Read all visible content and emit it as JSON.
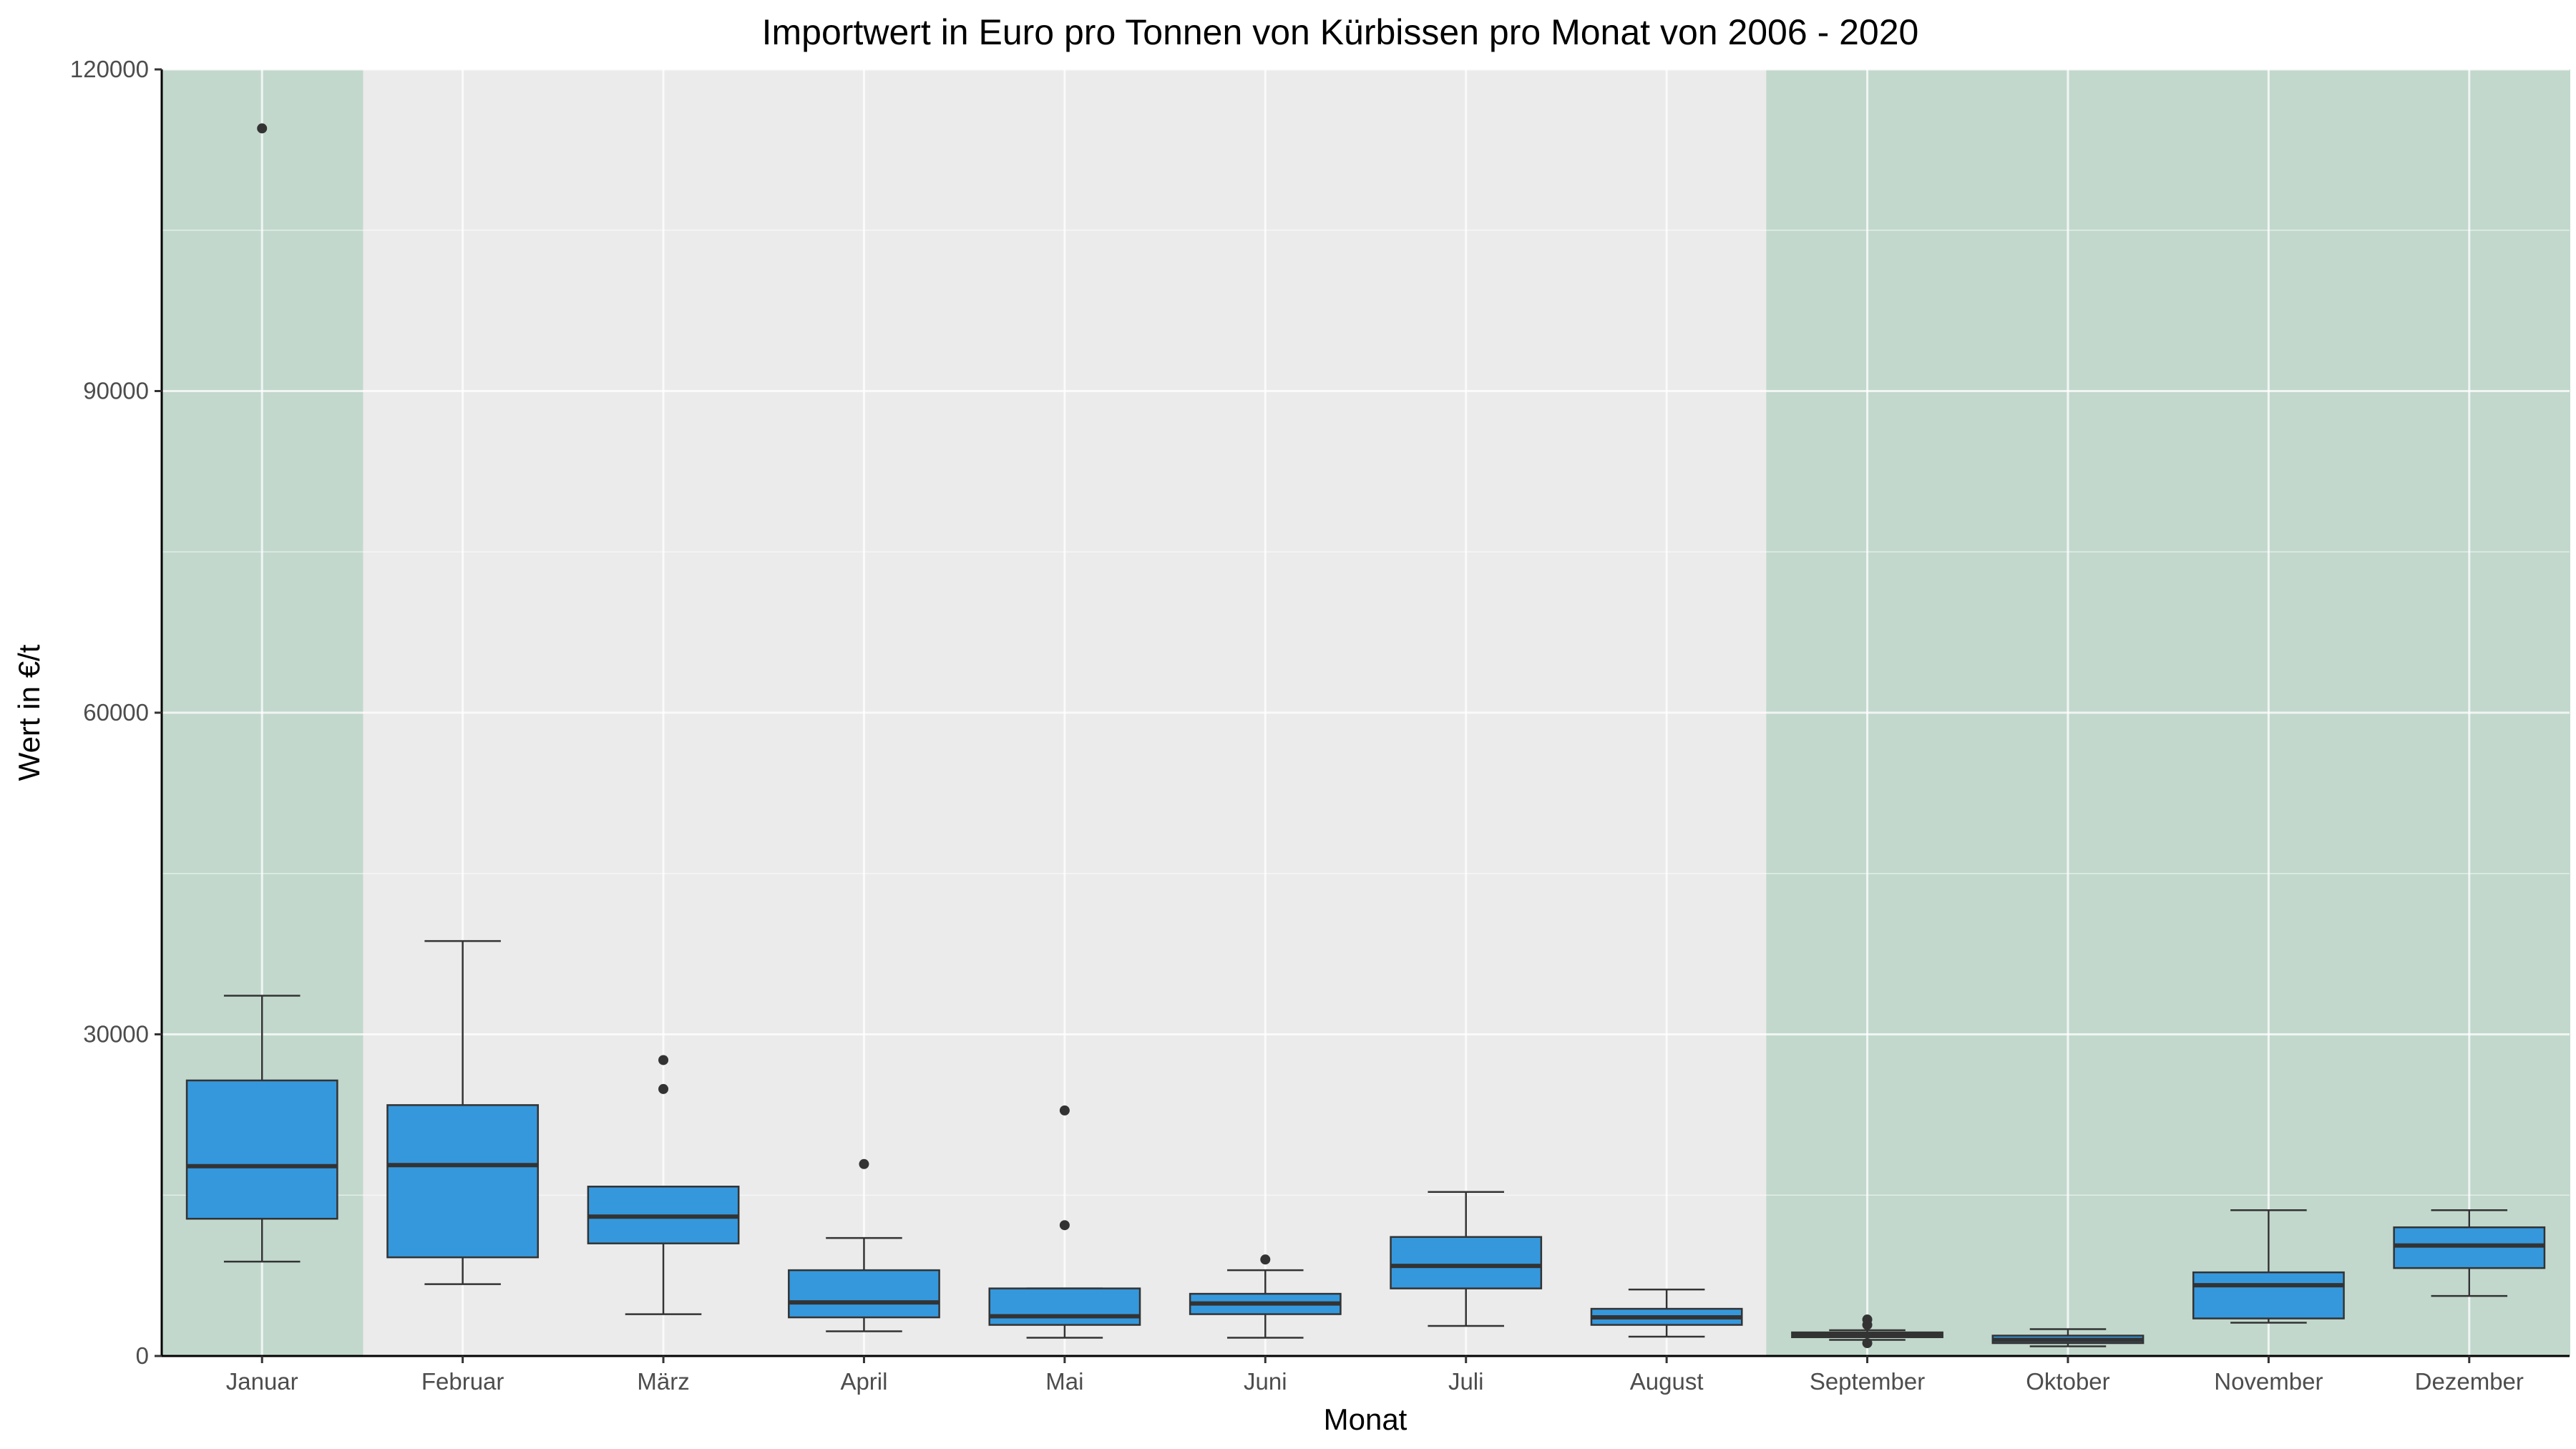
{
  "chart_data": {
    "type": "boxplot",
    "title": "Importwert in Euro pro Tonnen von Kürbissen pro Monat von 2006 - 2020",
    "xlabel": "Monat",
    "ylabel": "Wert in €/t",
    "ylim": [
      0,
      120000
    ],
    "yticks": [
      "0",
      "30000",
      "60000",
      "90000",
      "120000"
    ],
    "yticks_values": [
      0,
      30000,
      60000,
      90000,
      120000
    ],
    "grid": true,
    "highlighted_categories": [
      "Januar",
      "September",
      "Oktober",
      "November",
      "Dezember"
    ],
    "colors": {
      "panel": "#ebebeb",
      "grid": "#ffffff",
      "highlight": "#c2d8cd",
      "box_fill": "#3598dc",
      "box_line": "#333333",
      "outlier": "#333333",
      "axis": "#000000"
    },
    "categories": [
      "Januar",
      "Februar",
      "März",
      "April",
      "Mai",
      "Juni",
      "Juli",
      "August",
      "September",
      "Oktober",
      "November",
      "Dezember"
    ],
    "boxes": [
      {
        "category": "Januar",
        "low": 8800,
        "q1": 12800,
        "median": 17700,
        "q3": 25700,
        "high": 33600,
        "outliers": [
          114500
        ]
      },
      {
        "category": "Februar",
        "low": 6700,
        "q1": 9200,
        "median": 17800,
        "q3": 23400,
        "high": 38700,
        "outliers": []
      },
      {
        "category": "März",
        "low": 3900,
        "q1": 10500,
        "median": 13000,
        "q3": 15800,
        "high": 15800,
        "outliers": [
          27600,
          24900
        ]
      },
      {
        "category": "April",
        "low": 2300,
        "q1": 3600,
        "median": 5000,
        "q3": 8000,
        "high": 11000,
        "outliers": [
          17900
        ]
      },
      {
        "category": "Mai",
        "low": 1700,
        "q1": 2900,
        "median": 3700,
        "q3": 6300,
        "high": 6300,
        "outliers": [
          22900,
          12200
        ]
      },
      {
        "category": "Juni",
        "low": 1700,
        "q1": 3900,
        "median": 4900,
        "q3": 5800,
        "high": 8000,
        "outliers": [
          9000
        ]
      },
      {
        "category": "Juli",
        "low": 2800,
        "q1": 6300,
        "median": 8400,
        "q3": 11100,
        "high": 15300,
        "outliers": []
      },
      {
        "category": "August",
        "low": 1800,
        "q1": 2900,
        "median": 3600,
        "q3": 4400,
        "high": 6200,
        "outliers": []
      },
      {
        "category": "September",
        "low": 1500,
        "q1": 1750,
        "median": 2000,
        "q3": 2200,
        "high": 2400,
        "outliers": [
          1200,
          2900,
          3400
        ]
      },
      {
        "category": "Oktober",
        "low": 900,
        "q1": 1200,
        "median": 1500,
        "q3": 1900,
        "high": 2500,
        "outliers": []
      },
      {
        "category": "November",
        "low": 3100,
        "q1": 3500,
        "median": 6600,
        "q3": 7800,
        "high": 13600,
        "outliers": []
      },
      {
        "category": "Dezember",
        "low": 5600,
        "q1": 8200,
        "median": 10300,
        "q3": 12000,
        "high": 13600,
        "outliers": []
      }
    ]
  }
}
